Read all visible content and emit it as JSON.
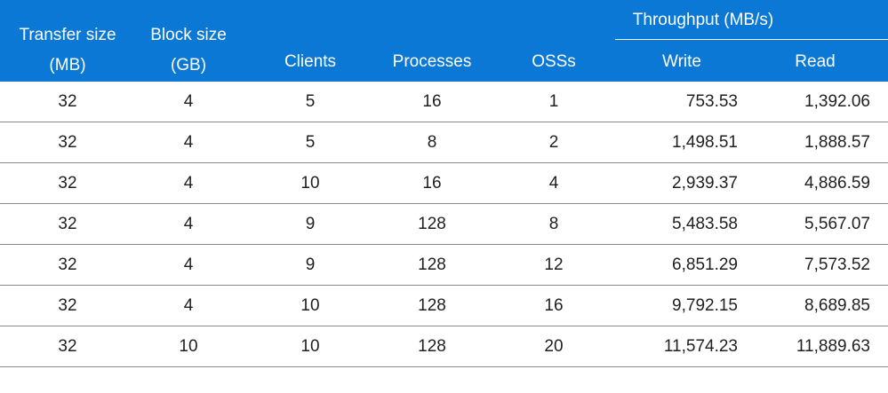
{
  "header": {
    "transfer_size_line1": "Transfer size",
    "transfer_size_line2": "(MB)",
    "block_size_line1": "Block size",
    "block_size_line2": "(GB)",
    "clients": "Clients",
    "processes": "Processes",
    "osss": "OSSs",
    "throughput_group": "Throughput (MB/s)",
    "write": "Write",
    "read": "Read"
  },
  "rows": [
    {
      "transfer_size": "32",
      "block_size": "4",
      "clients": "5",
      "processes": "16",
      "osss": "1",
      "write": "753.53",
      "read": "1,392.06"
    },
    {
      "transfer_size": "32",
      "block_size": "4",
      "clients": "5",
      "processes": "8",
      "osss": "2",
      "write": "1,498.51",
      "read": "1,888.57"
    },
    {
      "transfer_size": "32",
      "block_size": "4",
      "clients": "10",
      "processes": "16",
      "osss": "4",
      "write": "2,939.37",
      "read": "4,886.59"
    },
    {
      "transfer_size": "32",
      "block_size": "4",
      "clients": "9",
      "processes": "128",
      "osss": "8",
      "write": "5,483.58",
      "read": "5,567.07"
    },
    {
      "transfer_size": "32",
      "block_size": "4",
      "clients": "9",
      "processes": "128",
      "osss": "12",
      "write": "6,851.29",
      "read": "7,573.52"
    },
    {
      "transfer_size": "32",
      "block_size": "4",
      "clients": "10",
      "processes": "128",
      "osss": "16",
      "write": "9,792.15",
      "read": "8,689.85"
    },
    {
      "transfer_size": "32",
      "block_size": "10",
      "clients": "10",
      "processes": "128",
      "osss": "20",
      "write": "11,574.23",
      "read": "11,889.63"
    }
  ],
  "colors": {
    "header_background": "#0a78d4",
    "header_text": "#ffffff",
    "row_divider": "#8a8a8a"
  }
}
